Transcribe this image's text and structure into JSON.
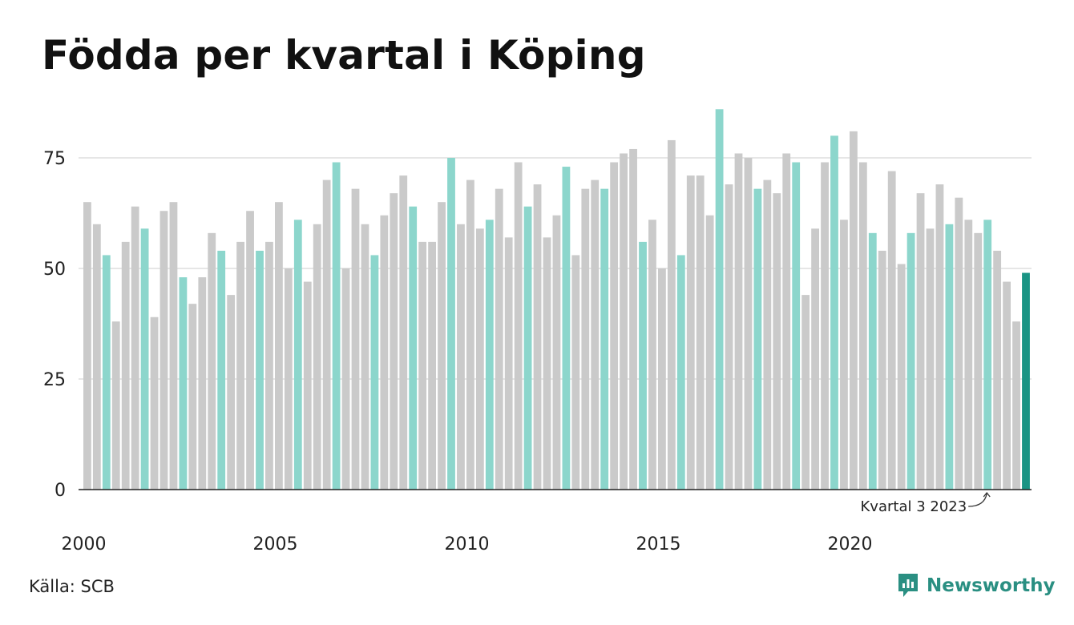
{
  "header": {
    "title": "Födda per kvartal i Köping"
  },
  "footer": {
    "source": "Källa: SCB",
    "brand": "Newsworthy"
  },
  "colors": {
    "bar_default": "#cacaca",
    "bar_q3": "#8cd6cc",
    "bar_latest": "#1a9484",
    "grid": "#dddddd",
    "axis": "#222222",
    "brand": "#2a8f82"
  },
  "chart_data": {
    "type": "bar",
    "title": "Födda per kvartal i Köping",
    "ylim": [
      0,
      86
    ],
    "yticks": [
      0,
      25,
      50,
      75
    ],
    "grid": true,
    "xtick_labels": [
      "2000",
      "2005",
      "2010",
      "2015",
      "2020"
    ],
    "highlight": "third quarter of each year",
    "annotation": {
      "text": "Kvartal 3 2023",
      "target": "2023 Q3"
    },
    "series": [
      {
        "quarters": [
          "2000 Q1",
          "2000 Q2",
          "2000 Q3",
          "2000 Q4",
          "2001 Q1",
          "2001 Q2",
          "2001 Q3",
          "2001 Q4",
          "2002 Q1",
          "2002 Q2",
          "2002 Q3",
          "2002 Q4",
          "2003 Q1",
          "2003 Q2",
          "2003 Q3",
          "2003 Q4",
          "2004 Q1",
          "2004 Q2",
          "2004 Q3",
          "2004 Q4",
          "2005 Q1",
          "2005 Q2",
          "2005 Q3",
          "2005 Q4",
          "2006 Q1",
          "2006 Q2",
          "2006 Q3",
          "2006 Q4",
          "2007 Q1",
          "2007 Q2",
          "2007 Q3",
          "2007 Q4",
          "2008 Q1",
          "2008 Q2",
          "2008 Q3",
          "2008 Q4",
          "2009 Q1",
          "2009 Q2",
          "2009 Q3",
          "2009 Q4",
          "2010 Q1",
          "2010 Q2",
          "2010 Q3",
          "2010 Q4",
          "2011 Q1",
          "2011 Q2",
          "2011 Q3",
          "2011 Q4",
          "2012 Q1",
          "2012 Q2",
          "2012 Q3",
          "2012 Q4",
          "2013 Q1",
          "2013 Q2",
          "2013 Q3",
          "2013 Q4",
          "2014 Q1",
          "2014 Q2",
          "2014 Q3",
          "2014 Q4",
          "2015 Q1",
          "2015 Q2",
          "2015 Q3",
          "2015 Q4",
          "2016 Q1",
          "2016 Q2",
          "2016 Q3",
          "2016 Q4",
          "2017 Q1",
          "2017 Q2",
          "2017 Q3",
          "2017 Q4",
          "2018 Q1",
          "2018 Q2",
          "2018 Q3",
          "2018 Q4",
          "2019 Q1",
          "2019 Q2",
          "2019 Q3",
          "2019 Q4",
          "2020 Q1",
          "2020 Q2",
          "2020 Q3",
          "2020 Q4",
          "2021 Q1",
          "2021 Q2",
          "2021 Q3",
          "2021 Q4",
          "2022 Q1",
          "2022 Q2",
          "2022 Q3",
          "2022 Q4",
          "2023 Q1",
          "2023 Q2",
          "2023 Q3",
          "2023 Q4",
          "2024 Q1",
          "2024 Q2",
          "2024 Q3"
        ],
        "values": [
          65,
          60,
          53,
          38,
          56,
          64,
          59,
          39,
          63,
          65,
          48,
          42,
          48,
          58,
          54,
          44,
          56,
          63,
          54,
          56,
          65,
          50,
          61,
          47,
          60,
          70,
          74,
          50,
          68,
          60,
          53,
          62,
          67,
          71,
          64,
          56,
          56,
          65,
          75,
          60,
          70,
          59,
          61,
          68,
          57,
          74,
          64,
          69,
          57,
          62,
          73,
          53,
          68,
          70,
          68,
          74,
          76,
          77,
          56,
          61,
          50,
          79,
          53,
          71,
          71,
          62,
          86,
          69,
          76,
          75,
          68,
          70,
          67,
          76,
          74,
          44,
          59,
          74,
          80,
          61,
          81,
          74,
          58,
          54,
          72,
          51,
          58,
          67,
          59,
          69,
          60,
          66,
          61,
          58,
          61,
          54,
          47,
          38,
          49
        ]
      }
    ]
  }
}
